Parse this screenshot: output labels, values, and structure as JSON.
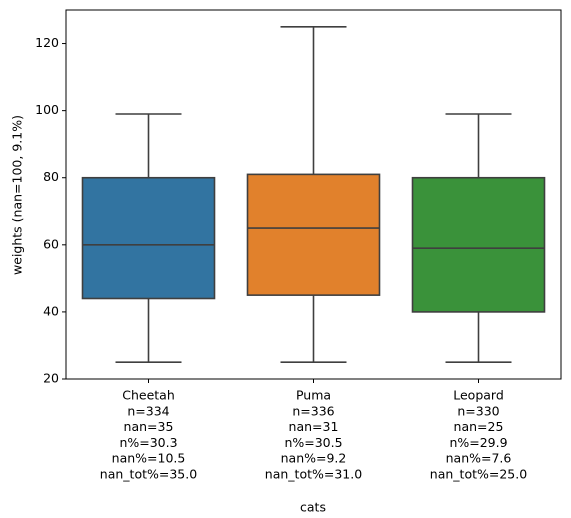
{
  "chart_data": {
    "type": "box",
    "xlabel": "cats",
    "ylabel": "weights (nan=100, 9.1%)",
    "categories": [
      [
        "Cheetah",
        "n=334",
        "nan=35",
        "n%=30.3",
        "nan%=10.5",
        "nan_tot%=35.0"
      ],
      [
        "Puma",
        "n=336",
        "nan=31",
        "n%=30.5",
        "nan%=9.2",
        "nan_tot%=31.0"
      ],
      [
        "Leopard",
        "n=330",
        "nan=25",
        "n%=29.9",
        "nan%=7.6",
        "nan_tot%=25.0"
      ]
    ],
    "boxes": [
      {
        "whislo": 25,
        "q1": 44,
        "med": 60,
        "q3": 80,
        "whishi": 99,
        "color": "#3274a1"
      },
      {
        "whislo": 25,
        "q1": 45,
        "med": 65,
        "q3": 81,
        "whishi": 125,
        "color": "#e1812c"
      },
      {
        "whislo": 25,
        "q1": 40,
        "med": 59,
        "q3": 80,
        "whishi": 99,
        "color": "#3a923a"
      }
    ],
    "edge_color": "#3f3f3f",
    "ylim": [
      20,
      130
    ],
    "yticks": [
      20,
      40,
      60,
      80,
      100,
      120
    ]
  }
}
